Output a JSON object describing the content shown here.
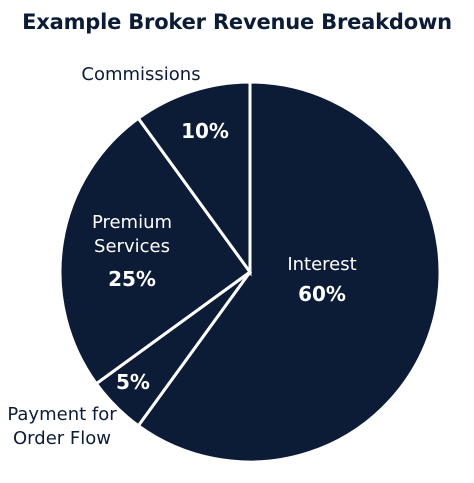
{
  "chart_data": {
    "type": "pie",
    "title": "Example Broker Revenue Breakdown",
    "slices": [
      {
        "label": "Interest",
        "value": 60,
        "value_label": "60%",
        "color": "#0c1c36"
      },
      {
        "label": "Payment for Order Flow",
        "value": 5,
        "value_label": "5%",
        "color": "#0c1c36"
      },
      {
        "label": "Premium Services",
        "value": 25,
        "value_label": "25%",
        "color": "#0c1c36"
      },
      {
        "label": "Commissions",
        "value": 10,
        "value_label": "10%",
        "color": "#0c1c36"
      }
    ],
    "label_lines": {
      "Payment for Order Flow": [
        "Payment for",
        "Order Flow"
      ],
      "Premium Services": [
        "Premium",
        "Services"
      ]
    },
    "separator_color": "#ffffff",
    "legend": "none"
  }
}
